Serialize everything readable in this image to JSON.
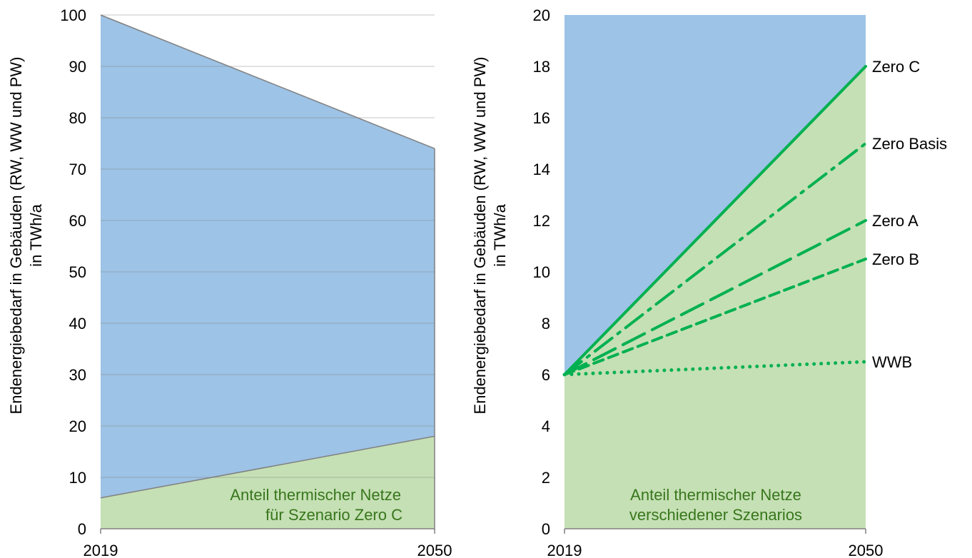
{
  "charts": [
    {
      "type": "area",
      "x": [
        "2019",
        "2050"
      ],
      "ylabel": "Endenergiebedarf in Gebäuden (RW, WW und PW)",
      "ylabel2": "in TWh/a",
      "ylim": [
        0,
        100
      ],
      "yticks": [
        0,
        10,
        20,
        30,
        40,
        50,
        60,
        70,
        80,
        90,
        100
      ],
      "grid": true,
      "series": [
        {
          "values": [
            100,
            74
          ],
          "color": "#9dc3e6"
        },
        {
          "values": [
            6,
            18
          ],
          "color": "#c5e0b4"
        }
      ],
      "annotation": [
        "Anteil thermischer Netze",
        "für Szenario Zero C"
      ],
      "annotation_color": "#38761d"
    },
    {
      "type": "area",
      "x": [
        "2019",
        "2050"
      ],
      "ylabel": "Endenergiebedarf in Gebäuden (RW, WW und PW)",
      "ylabel2": "in TWh/a",
      "ylim": [
        0,
        20
      ],
      "yticks": [
        0,
        2,
        4,
        6,
        8,
        10,
        12,
        14,
        16,
        18,
        20
      ],
      "grid": false,
      "area_colors": {
        "top": "#9dc3e6",
        "bottom": "#c5e0b4"
      },
      "lines": [
        {
          "name": "Zero C",
          "values": [
            6,
            18
          ],
          "style": "solid"
        },
        {
          "name": "Zero Basis",
          "values": [
            6,
            15
          ],
          "style": "dashdot"
        },
        {
          "name": "Zero A",
          "values": [
            6,
            12
          ],
          "style": "longdash"
        },
        {
          "name": "Zero B",
          "values": [
            6,
            10.5
          ],
          "style": "dash"
        },
        {
          "name": "WWB",
          "values": [
            6,
            6.5
          ],
          "style": "dot"
        }
      ],
      "line_color": "#00b050",
      "annotation": [
        "Anteil thermischer Netze",
        "verschiedener Szenarios"
      ],
      "annotation_color": "#38761d"
    }
  ]
}
